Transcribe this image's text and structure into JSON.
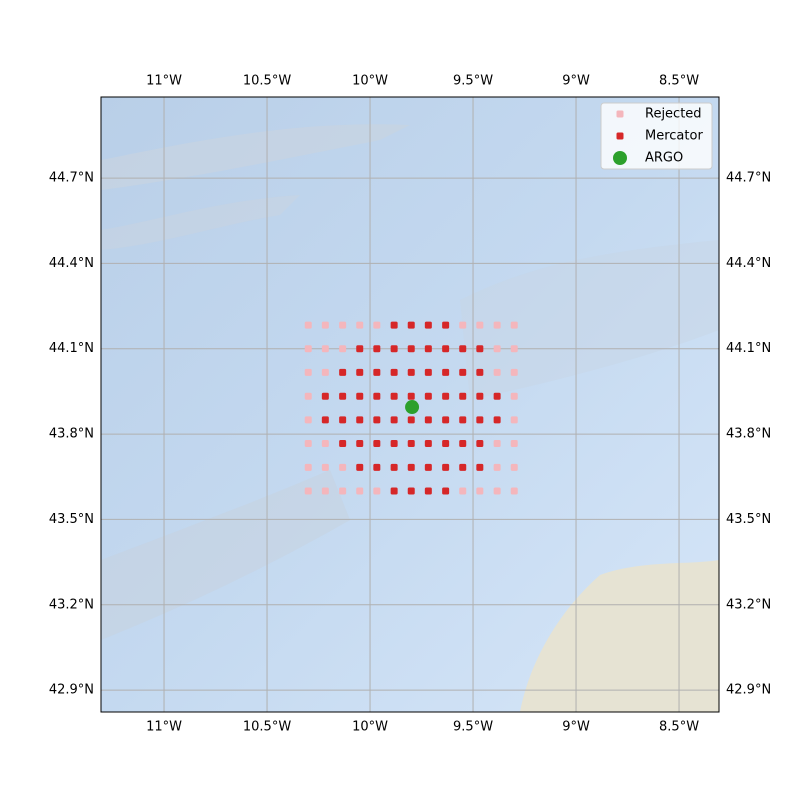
{
  "chart_data": {
    "type": "scatter",
    "xlim": [
      -11.306,
      -8.306
    ],
    "ylim": [
      42.823,
      44.985
    ],
    "xticks": [
      {
        "value": -11,
        "label": "11°W"
      },
      {
        "value": -10.5,
        "label": "10.5°W"
      },
      {
        "value": -10,
        "label": "10°W"
      },
      {
        "value": -9.5,
        "label": "9.5°W"
      },
      {
        "value": -9,
        "label": "9°W"
      },
      {
        "value": -8.5,
        "label": "8.5°W"
      }
    ],
    "yticks": [
      {
        "value": 42.9,
        "label": "42.9°N"
      },
      {
        "value": 43.2,
        "label": "43.2°N"
      },
      {
        "value": 43.5,
        "label": "43.5°N"
      },
      {
        "value": 43.8,
        "label": "43.8°N"
      },
      {
        "value": 44.1,
        "label": "44.1°N"
      },
      {
        "value": 44.4,
        "label": "44.4°N"
      },
      {
        "value": 44.7,
        "label": "44.7°N"
      }
    ],
    "grid": true,
    "legend": "upper right",
    "series": [
      {
        "name": "Rejected",
        "color": "#f4b6bc",
        "marker": "square",
        "x": [
          -10.3,
          -10.217,
          -10.133,
          -10.05,
          -9.967,
          -9.55,
          -9.467,
          -9.383,
          -9.3,
          -10.3,
          -10.217,
          -10.133,
          -9.383,
          -9.3,
          -10.3,
          -10.217,
          -9.383,
          -9.3,
          -10.3,
          -9.3,
          -10.3,
          -9.3,
          -10.3,
          -10.217,
          -9.383,
          -9.3,
          -10.3,
          -10.217,
          -10.133,
          -9.383,
          -9.3,
          -10.3,
          -10.217,
          -10.133,
          -10.05,
          -9.967,
          -9.55,
          -9.467,
          -9.383,
          -9.3
        ],
        "y": [
          44.183,
          44.183,
          44.183,
          44.183,
          44.183,
          44.183,
          44.183,
          44.183,
          44.183,
          44.1,
          44.1,
          44.1,
          44.1,
          44.1,
          44.017,
          44.017,
          44.017,
          44.017,
          43.933,
          43.933,
          43.85,
          43.85,
          43.767,
          43.767,
          43.767,
          43.767,
          43.683,
          43.683,
          43.683,
          43.683,
          43.683,
          43.6,
          43.6,
          43.6,
          43.6,
          43.6,
          43.6,
          43.6,
          43.6,
          43.6
        ]
      },
      {
        "name": "Mercator",
        "color": "#d62728",
        "marker": "square",
        "x": [
          -9.883,
          -9.8,
          -9.717,
          -9.633,
          -10.05,
          -9.967,
          -9.883,
          -9.8,
          -9.717,
          -9.633,
          -9.55,
          -9.467,
          -10.133,
          -10.05,
          -9.967,
          -9.883,
          -9.8,
          -9.717,
          -9.633,
          -9.55,
          -9.467,
          -10.217,
          -10.133,
          -10.05,
          -9.967,
          -9.883,
          -9.8,
          -9.717,
          -9.633,
          -9.55,
          -9.467,
          -9.383,
          -10.217,
          -10.133,
          -10.05,
          -9.967,
          -9.883,
          -9.8,
          -9.717,
          -9.633,
          -9.55,
          -9.467,
          -9.383,
          -10.133,
          -10.05,
          -9.967,
          -9.883,
          -9.8,
          -9.717,
          -9.633,
          -9.55,
          -9.467,
          -10.05,
          -9.967,
          -9.883,
          -9.8,
          -9.717,
          -9.633,
          -9.55,
          -9.467,
          -9.883,
          -9.8,
          -9.717,
          -9.633
        ],
        "y": [
          44.183,
          44.183,
          44.183,
          44.183,
          44.1,
          44.1,
          44.1,
          44.1,
          44.1,
          44.1,
          44.1,
          44.1,
          44.017,
          44.017,
          44.017,
          44.017,
          44.017,
          44.017,
          44.017,
          44.017,
          44.017,
          43.933,
          43.933,
          43.933,
          43.933,
          43.933,
          43.933,
          43.933,
          43.933,
          43.933,
          43.933,
          43.933,
          43.85,
          43.85,
          43.85,
          43.85,
          43.85,
          43.85,
          43.85,
          43.85,
          43.85,
          43.85,
          43.85,
          43.767,
          43.767,
          43.767,
          43.767,
          43.767,
          43.767,
          43.767,
          43.767,
          43.767,
          43.683,
          43.683,
          43.683,
          43.683,
          43.683,
          43.683,
          43.683,
          43.683,
          43.6,
          43.6,
          43.6,
          43.6
        ]
      },
      {
        "name": "ARGO",
        "color": "#2ca02c",
        "marker": "circle",
        "x": [
          -9.796
        ],
        "y": [
          43.895
        ]
      }
    ]
  }
}
